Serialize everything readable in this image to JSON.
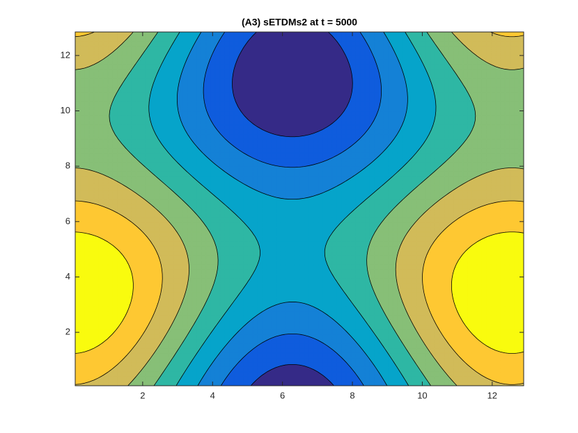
{
  "chart_data": {
    "type": "contour",
    "title": "(A3) sETDMs2 at t = 5000",
    "xlim": [
      0.07,
      12.9
    ],
    "ylim": [
      0.07,
      12.85
    ],
    "xticks": [
      2,
      4,
      6,
      8,
      10,
      12
    ],
    "yticks": [
      2,
      4,
      6,
      8,
      10,
      12
    ],
    "colors": [
      "#352a87",
      "#0f5cdd",
      "#1481d6",
      "#06a4ca",
      "#2eb7a4",
      "#87bf77",
      "#d1bb59",
      "#fec832",
      "#f9fb0e"
    ]
  }
}
